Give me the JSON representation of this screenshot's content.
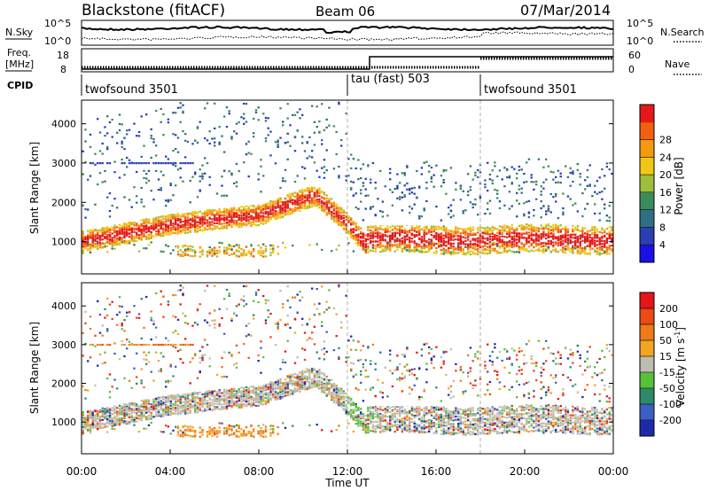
{
  "header": {
    "station": "Blackstone (fitACF)",
    "beam": "Beam 06",
    "date": "07/Mar/2014"
  },
  "panels": {
    "nsky": {
      "label": "N.Sky",
      "ticks": [
        "10^5",
        "10^0"
      ],
      "right_label": "N.Search",
      "right_ticks": [
        "10^5",
        "10^0"
      ]
    },
    "freq": {
      "label_line1": "Freq.",
      "label_line2": "[MHz]",
      "ticks": [
        "18",
        "8"
      ],
      "right_label": "Nave",
      "right_ticks": [
        "60",
        "0"
      ]
    },
    "cpid": {
      "label": "CPID",
      "segments": [
        {
          "name": "twofsound 3501",
          "start_hour": 0,
          "end_hour": 12
        },
        {
          "name": "tau (fast) 503",
          "start_hour": 12,
          "end_hour": 18
        },
        {
          "name": "twofsound 3501",
          "start_hour": 18,
          "end_hour": 24
        }
      ]
    }
  },
  "chart_data": [
    {
      "type": "heatmap",
      "name": "Power",
      "ylabel": "Slant Range [km]",
      "ylim": [
        180,
        4600
      ],
      "y_ticks": [
        1000,
        2000,
        3000,
        4000
      ],
      "colorbar": {
        "label": "Power [dB]",
        "range": [
          0,
          32
        ],
        "ticks": [
          "4",
          "8",
          "12",
          "16",
          "20",
          "24",
          "28"
        ],
        "colors": [
          "#1a10e6",
          "#2b3fb0",
          "#2f6f86",
          "#3a8c5a",
          "#9fbf3a",
          "#f0c814",
          "#f59a10",
          "#f06010",
          "#e41a1a"
        ]
      }
    },
    {
      "type": "heatmap",
      "name": "Velocity",
      "ylabel": "Slant Range [km]",
      "ylim": [
        180,
        4600
      ],
      "y_ticks": [
        1000,
        2000,
        3000,
        4000
      ],
      "xlabel": "Time UT",
      "x_ticks": [
        "00:00",
        "04:00",
        "08:00",
        "12:00",
        "16:00",
        "20:00",
        "00:00"
      ],
      "colorbar": {
        "label": "Velocity [m s",
        "label_sup": "-1",
        "label_end": "]",
        "ticks": [
          "200",
          "100",
          "50",
          "15",
          "-15",
          "-50",
          "-100",
          "-200"
        ],
        "colors": [
          "#1f2aa8",
          "#3b5fc4",
          "#2e8a6a",
          "#56c23a",
          "#bdbdb0",
          "#f2a521",
          "#ef7a18",
          "#ea4b17",
          "#e4161a"
        ]
      }
    }
  ],
  "colors": {
    "gray_scatter": "#bdbdb0",
    "mode_change_line": "#b0b0b0"
  }
}
